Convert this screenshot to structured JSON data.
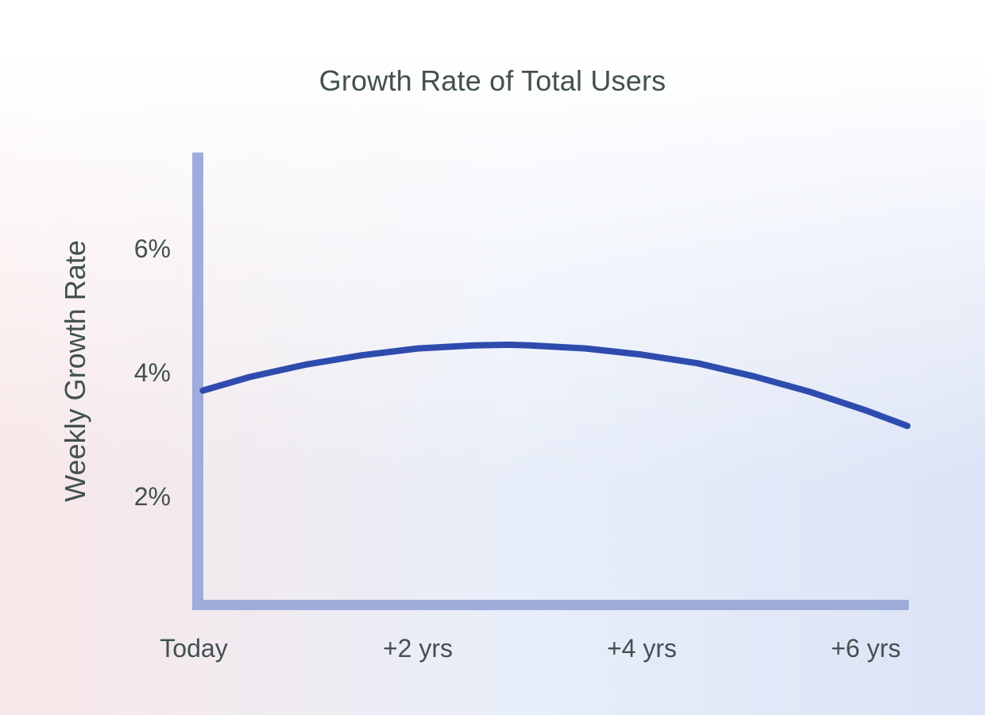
{
  "colors": {
    "curve": "#2e4cae",
    "axis": "#9fabda",
    "text": "#425050",
    "bg_top": "#ffffff",
    "bg_bottom_left": "#f8e7e7",
    "bg_center": "#e8eef9",
    "bg_bottom_right": "#dce3f5"
  },
  "chart_data": {
    "type": "line",
    "title": "Growth Rate of Total Users",
    "xlabel": "",
    "ylabel": "Weekly Growth Rate",
    "x_tick_labels": [
      "Today",
      "+2 yrs",
      "+4 yrs",
      "+6 yrs"
    ],
    "x_tick_years": [
      0,
      2,
      4,
      6
    ],
    "y_tick_labels": [
      "2%",
      "4%",
      "6%"
    ],
    "y_tick_values": [
      2,
      4,
      6
    ],
    "xlim_years": [
      0,
      6.4
    ],
    "ylim_percent": [
      0.3,
      7.6
    ],
    "grid": false,
    "legend": null,
    "series": [
      {
        "name": "weekly-growth-rate",
        "units": "percent per week",
        "points_year_pct": [
          [
            0.08,
            3.71
          ],
          [
            0.5,
            3.93
          ],
          [
            1.0,
            4.13
          ],
          [
            1.5,
            4.28
          ],
          [
            2.0,
            4.39
          ],
          [
            2.5,
            4.44
          ],
          [
            2.8,
            4.45
          ],
          [
            3.0,
            4.44
          ],
          [
            3.5,
            4.39
          ],
          [
            4.0,
            4.29
          ],
          [
            4.5,
            4.15
          ],
          [
            5.0,
            3.94
          ],
          [
            5.5,
            3.69
          ],
          [
            6.0,
            3.39
          ],
          [
            6.37,
            3.14
          ]
        ]
      }
    ],
    "summary": {
      "start_pct": 3.7,
      "peak_pct": 4.45,
      "peak_at_years": 2.8,
      "end_pct": 3.14
    }
  }
}
